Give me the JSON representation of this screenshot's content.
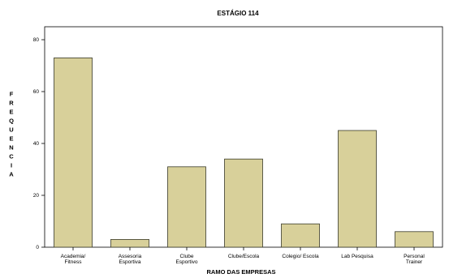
{
  "chart_data": {
    "type": "bar",
    "title": "ESTÁGIO 114",
    "xlabel": "RAMO DAS EMPRESAS",
    "ylabel": "FREQUENCIA",
    "categories": [
      [
        "Academia/",
        "Fitness"
      ],
      [
        "Assesoria",
        "Esportiva"
      ],
      [
        "Clube",
        "Esportivo"
      ],
      [
        "Clube/Escola"
      ],
      [
        "Colegio/ Escola"
      ],
      [
        "Lab Pesquisa"
      ],
      [
        "Personal",
        "Trainer"
      ]
    ],
    "values": [
      73,
      3,
      31,
      34,
      9,
      45,
      6
    ],
    "ylim": [
      0,
      85
    ],
    "yticks": [
      0,
      20,
      40,
      60,
      80
    ],
    "grid": false,
    "colors": {
      "bar": "#d8d09a",
      "bar_stroke": "#3a3a2a",
      "frame": "#000000"
    }
  }
}
